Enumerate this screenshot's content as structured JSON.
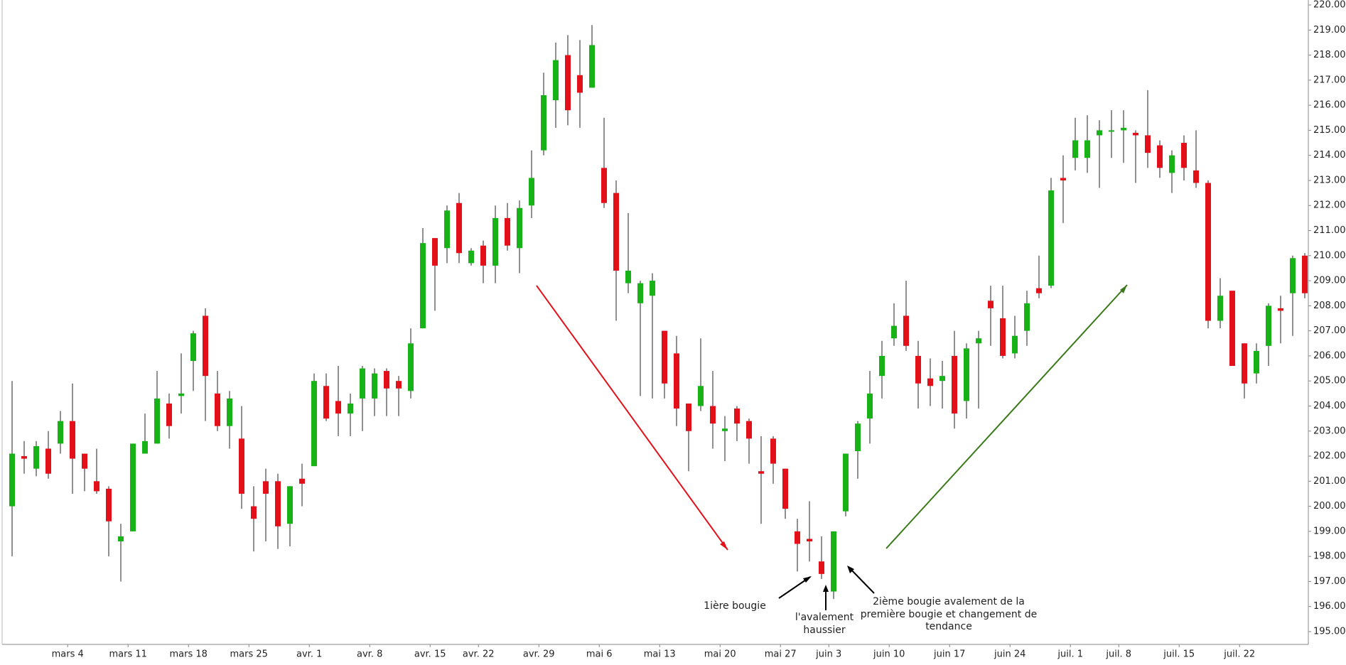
{
  "chart_data": {
    "type": "candlestick",
    "up_color": "#17b217",
    "down_color": "#e3101a",
    "categories": [
      null,
      null,
      null,
      null,
      null,
      "mars 4",
      null,
      null,
      null,
      null,
      "mars 11",
      null,
      null,
      null,
      null,
      "mars 18",
      null,
      null,
      null,
      null,
      "mars 25",
      null,
      null,
      null,
      null,
      "avr. 1",
      null,
      null,
      null,
      null,
      "avr. 8",
      null,
      null,
      null,
      null,
      "avr. 15",
      null,
      null,
      null,
      "avr. 22",
      null,
      null,
      null,
      null,
      "avr. 29",
      null,
      null,
      null,
      null,
      "mai 6",
      null,
      null,
      null,
      null,
      "mai 13",
      null,
      null,
      null,
      null,
      "mai 20",
      null,
      null,
      null,
      null,
      "mai 27",
      null,
      null,
      null,
      "juin 3",
      null,
      null,
      null,
      null,
      "juin 10",
      null,
      null,
      null,
      null,
      "juin 17",
      null,
      null,
      null,
      null,
      "juin 24",
      null,
      null,
      null,
      null,
      "juil. 1",
      null,
      null,
      null,
      "juil. 8",
      null,
      null,
      null,
      null,
      "juil. 15",
      null,
      null,
      null,
      null,
      "juil. 22",
      null,
      null,
      null,
      null,
      null
    ],
    "open": [
      200.0,
      202.0,
      201.5,
      202.3,
      202.5,
      203.4,
      202.1,
      201.0,
      200.7,
      198.6,
      199.0,
      202.1,
      202.5,
      204.1,
      204.4,
      205.8,
      207.6,
      204.5,
      203.2,
      202.7,
      200.0,
      201.0,
      201.0,
      199.3,
      201.1,
      201.6,
      204.8,
      204.2,
      203.7,
      204.3,
      204.3,
      205.4,
      205.0,
      204.6,
      207.1,
      210.7,
      210.3,
      212.1,
      209.7,
      210.4,
      209.6,
      211.5,
      210.3,
      212.0,
      214.2,
      216.2,
      218.0,
      217.2,
      216.7,
      213.5,
      212.5,
      208.9,
      208.1,
      208.4,
      207.0,
      206.1,
      204.1,
      204.0,
      204.0,
      203.0,
      203.9,
      203.4,
      201.4,
      202.7,
      201.5,
      199.0,
      198.7,
      197.8,
      196.6,
      199.8,
      202.2,
      203.5,
      205.2,
      206.7,
      207.6,
      206.0,
      205.1,
      205.0,
      206.0,
      204.2,
      206.5,
      208.2,
      207.5,
      206.1,
      207.0,
      208.7,
      208.8,
      213.1,
      213.9,
      213.9,
      214.8,
      215.0,
      215.0,
      214.9,
      214.8,
      214.4,
      213.3,
      214.5,
      213.4,
      212.9,
      207.4,
      208.6,
      206.5,
      205.3,
      206.4,
      207.9,
      208.5,
      210.0
    ],
    "high": [
      205.0,
      202.6,
      202.6,
      203.0,
      203.8,
      204.9,
      202.1,
      202.3,
      200.8,
      199.3,
      202.5,
      203.7,
      205.4,
      204.5,
      206.1,
      207.0,
      207.9,
      205.4,
      204.6,
      204.0,
      200.8,
      201.5,
      201.3,
      200.8,
      201.7,
      205.3,
      205.3,
      205.6,
      204.5,
      205.6,
      205.5,
      205.5,
      205.2,
      207.1,
      211.1,
      210.7,
      212.0,
      212.5,
      210.3,
      210.6,
      212.0,
      212.1,
      212.2,
      214.2,
      217.3,
      218.5,
      218.8,
      218.6,
      219.2,
      215.5,
      213.0,
      211.7,
      209.0,
      209.3,
      207.0,
      206.8,
      204.1,
      206.7,
      205.4,
      203.6,
      204.0,
      203.5,
      202.8,
      202.8,
      201.5,
      199.5,
      200.2,
      198.8,
      199.0,
      202.1,
      203.4,
      205.4,
      206.6,
      208.1,
      209.0,
      206.6,
      205.9,
      205.8,
      207.0,
      206.5,
      207.0,
      208.8,
      208.8,
      207.6,
      208.6,
      210.0,
      213.1,
      214.0,
      215.5,
      215.6,
      215.4,
      215.8,
      215.8,
      215.0,
      216.6,
      214.6,
      214.2,
      214.8,
      215.0,
      213.0,
      209.1,
      208.6,
      206.5,
      206.5,
      208.1,
      208.4,
      210.0,
      210.1
    ],
    "low": [
      198.0,
      201.3,
      201.2,
      201.1,
      202.1,
      200.5,
      200.6,
      200.5,
      198.0,
      197.0,
      199.0,
      202.1,
      202.5,
      202.7,
      203.7,
      204.6,
      203.4,
      203.0,
      202.3,
      199.9,
      198.2,
      198.6,
      198.3,
      198.4,
      200.0,
      201.6,
      203.4,
      202.8,
      202.8,
      203.0,
      203.6,
      203.6,
      203.6,
      204.3,
      207.1,
      207.8,
      209.7,
      209.7,
      209.6,
      208.9,
      208.9,
      210.2,
      209.3,
      211.5,
      214.0,
      215.1,
      215.2,
      215.1,
      216.7,
      211.9,
      207.4,
      208.5,
      204.4,
      204.3,
      204.3,
      203.2,
      201.4,
      203.8,
      202.3,
      201.8,
      202.6,
      201.7,
      199.3,
      200.9,
      199.5,
      197.4,
      197.8,
      197.1,
      196.3,
      199.6,
      201.1,
      202.5,
      204.3,
      206.4,
      206.2,
      203.9,
      204.0,
      203.9,
      203.1,
      203.5,
      203.9,
      206.4,
      205.9,
      205.9,
      206.4,
      208.3,
      208.7,
      211.3,
      213.4,
      213.3,
      212.7,
      213.9,
      213.7,
      212.9,
      213.5,
      213.1,
      212.5,
      213.0,
      212.7,
      207.1,
      207.1,
      205.6,
      204.3,
      204.9,
      205.6,
      206.5,
      206.8,
      208.3
    ],
    "close": [
      202.1,
      201.9,
      202.4,
      201.3,
      203.4,
      201.9,
      201.5,
      200.6,
      199.4,
      198.8,
      202.5,
      202.6,
      204.3,
      203.2,
      204.5,
      206.9,
      205.2,
      203.2,
      204.3,
      200.5,
      199.5,
      200.5,
      199.2,
      200.8,
      200.9,
      205.0,
      203.5,
      203.7,
      204.1,
      205.5,
      205.3,
      204.7,
      204.7,
      206.5,
      210.5,
      209.6,
      211.8,
      210.1,
      210.2,
      209.6,
      211.5,
      210.4,
      211.9,
      213.1,
      216.4,
      217.8,
      215.8,
      216.5,
      218.4,
      212.1,
      209.4,
      209.4,
      208.9,
      209.0,
      204.9,
      203.9,
      203.0,
      204.8,
      203.3,
      203.1,
      203.3,
      202.7,
      201.3,
      201.7,
      199.9,
      198.5,
      198.6,
      197.3,
      199.0,
      202.1,
      203.3,
      204.5,
      206.0,
      207.2,
      206.4,
      204.9,
      204.8,
      205.2,
      203.7,
      206.3,
      206.7,
      207.9,
      206.0,
      206.8,
      208.1,
      208.5,
      212.6,
      213.0,
      214.6,
      214.6,
      215.0,
      215.0,
      215.1,
      214.8,
      214.1,
      213.5,
      214.0,
      213.5,
      212.9,
      207.4,
      208.4,
      205.6,
      204.9,
      206.2,
      208.0,
      207.8,
      209.9,
      208.5
    ],
    "ylim": [
      195,
      220
    ],
    "yticks": [
      {
        "value": 195,
        "label": "195.00"
      },
      {
        "value": 196,
        "label": "196.00"
      },
      {
        "value": 197,
        "label": "197.00"
      },
      {
        "value": 198,
        "label": "198.00"
      },
      {
        "value": 199,
        "label": "199.00"
      },
      {
        "value": 200,
        "label": "200.00"
      },
      {
        "value": 201,
        "label": "201.00"
      },
      {
        "value": 202,
        "label": "202.00"
      },
      {
        "value": 203,
        "label": "203.00"
      },
      {
        "value": 204,
        "label": "204.00"
      },
      {
        "value": 205,
        "label": "205.00"
      },
      {
        "value": 206,
        "label": "206.00"
      },
      {
        "value": 207,
        "label": "207.00"
      },
      {
        "value": 208,
        "label": "208.00"
      },
      {
        "value": 209,
        "label": "209.00"
      },
      {
        "value": 210,
        "label": "210.00"
      },
      {
        "value": 211,
        "label": "211.00"
      },
      {
        "value": 212,
        "label": "212.00"
      },
      {
        "value": 213,
        "label": "213.00"
      },
      {
        "value": 214,
        "label": "214.00"
      },
      {
        "value": 215,
        "label": "215.00"
      },
      {
        "value": 216,
        "label": "216.00"
      },
      {
        "value": 217,
        "label": "217.00"
      },
      {
        "value": 218,
        "label": "218.00"
      },
      {
        "value": 219,
        "label": "219.00"
      },
      {
        "value": 220,
        "label": "220.00"
      }
    ],
    "annotations": [
      {
        "lines": [
          "1ière bougie"
        ]
      },
      {
        "lines": [
          "l'avalement",
          "haussier"
        ]
      },
      {
        "lines": [
          "2ième bougie avalement de la",
          "première bougie et changement de",
          "tendance"
        ]
      }
    ]
  }
}
